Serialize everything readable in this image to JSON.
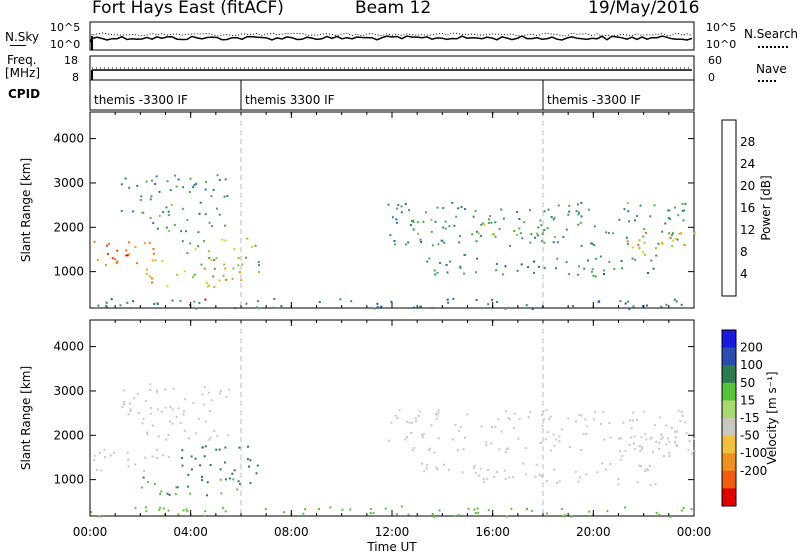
{
  "header": {
    "site": "Fort Hays East (fitACF)",
    "beam": "Beam 12",
    "date": "19/May/2016"
  },
  "strips": {
    "nsky_label": "N.Sky",
    "nsearch_label": "N.Search",
    "freq_label_1": "Freq.",
    "freq_label_2": "[MHz]",
    "nave_label": "Nave",
    "cpid_label": "CPID",
    "noise_tick_top": "10^5",
    "noise_tick_bottom": "10^0",
    "freq_tick_top": "18",
    "freq_tick_bottom": "8",
    "nave_tick_top": "60",
    "nave_tick_bottom": "0",
    "cpid_segments": [
      {
        "label": "themis -3300 IF",
        "start_hour": 0
      },
      {
        "label": "themis 3300 IF",
        "start_hour": 6
      },
      {
        "label": "themis -3300 IF",
        "start_hour": 18
      }
    ]
  },
  "colors": {
    "power_scale": [
      "#1430ff",
      "#1f4fc0",
      "#2f6f9a",
      "#3a8c70",
      "#4ca84a",
      "#8cc43a",
      "#d8d020",
      "#f0a020",
      "#f07010",
      "#e83818",
      "#e00000"
    ],
    "velocity_scale": [
      "#1a1ae0",
      "#2c4cb0",
      "#2f7a50",
      "#58c23a",
      "#a8d870",
      "#c8c8c0",
      "#f0c040",
      "#f09020",
      "#f05c10",
      "#e00000"
    ]
  },
  "chart_data": [
    {
      "type": "heatmap",
      "name": "power",
      "ylabel": "Slant Range [km]",
      "xlabel": "Time UT",
      "xlim_hours": [
        0,
        24
      ],
      "ylim_km": [
        180,
        4600
      ],
      "x_ticks": [
        "00:00",
        "04:00",
        "08:00",
        "12:00",
        "16:00",
        "20:00",
        "00:00"
      ],
      "y_ticks": [
        1000,
        2000,
        3000,
        4000
      ],
      "colorbar": {
        "label": "Power [dB]",
        "ticks": [
          "4",
          "8",
          "12",
          "16",
          "20",
          "24",
          "28"
        ],
        "range": [
          0,
          30
        ]
      },
      "regions": [
        {
          "t0": 0.0,
          "t1": 3.2,
          "r0": 1150,
          "r1": 1700,
          "level": 22
        },
        {
          "t0": 0.3,
          "t1": 2.6,
          "r0": 1250,
          "r1": 1450,
          "level": 27
        },
        {
          "t0": 2.0,
          "t1": 6.0,
          "r0": 650,
          "r1": 1100,
          "level": 20
        },
        {
          "t0": 3.5,
          "t1": 6.8,
          "r0": 900,
          "r1": 1800,
          "level": 14
        },
        {
          "t0": 1.2,
          "t1": 5.5,
          "r0": 1900,
          "r1": 3200,
          "level": 10
        },
        {
          "t0": 4.0,
          "t1": 5.0,
          "r0": 300,
          "r1": 420,
          "level": 27
        },
        {
          "t0": 0.0,
          "t1": 24.0,
          "r0": 180,
          "r1": 420,
          "level": 8
        },
        {
          "t0": 11.8,
          "t1": 24.0,
          "r0": 1600,
          "r1": 2600,
          "level": 10
        },
        {
          "t0": 13.0,
          "t1": 22.5,
          "r0": 900,
          "r1": 1400,
          "level": 9
        },
        {
          "t0": 21.0,
          "t1": 24.0,
          "r0": 1400,
          "r1": 2000,
          "level": 19
        },
        {
          "t0": 14.5,
          "t1": 18.5,
          "r0": 1800,
          "r1": 2300,
          "level": 13
        }
      ]
    },
    {
      "type": "heatmap",
      "name": "velocity",
      "ylabel": "Slant Range [km]",
      "xlabel": "Time UT",
      "xlim_hours": [
        0,
        24
      ],
      "ylim_km": [
        180,
        4600
      ],
      "x_ticks": [
        "00:00",
        "04:00",
        "08:00",
        "12:00",
        "16:00",
        "20:00",
        "00:00"
      ],
      "y_ticks": [
        1000,
        2000,
        3000,
        4000
      ],
      "colorbar": {
        "label": "Velocity [m s⁻¹]",
        "ticks": [
          "200",
          "100",
          "50",
          "15",
          "-15",
          "-50",
          "-100",
          "-200"
        ]
      },
      "regions": [
        {
          "t0": 0.0,
          "t1": 3.2,
          "r0": 1150,
          "r1": 1700,
          "level": 0
        },
        {
          "t0": 2.0,
          "t1": 6.0,
          "r0": 650,
          "r1": 1100,
          "level": 30
        },
        {
          "t0": 3.5,
          "t1": 6.8,
          "r0": 900,
          "r1": 1800,
          "level": 40
        },
        {
          "t0": 1.2,
          "t1": 5.5,
          "r0": 1900,
          "r1": 3200,
          "level": 0
        },
        {
          "t0": 0.0,
          "t1": 24.0,
          "r0": 180,
          "r1": 420,
          "level": 20
        },
        {
          "t0": 11.8,
          "t1": 24.0,
          "r0": 1600,
          "r1": 2600,
          "level": 0
        },
        {
          "t0": 13.0,
          "t1": 22.5,
          "r0": 900,
          "r1": 1400,
          "level": 0
        },
        {
          "t0": 21.0,
          "t1": 24.0,
          "r0": 1400,
          "r1": 2000,
          "level": -10
        }
      ]
    }
  ]
}
